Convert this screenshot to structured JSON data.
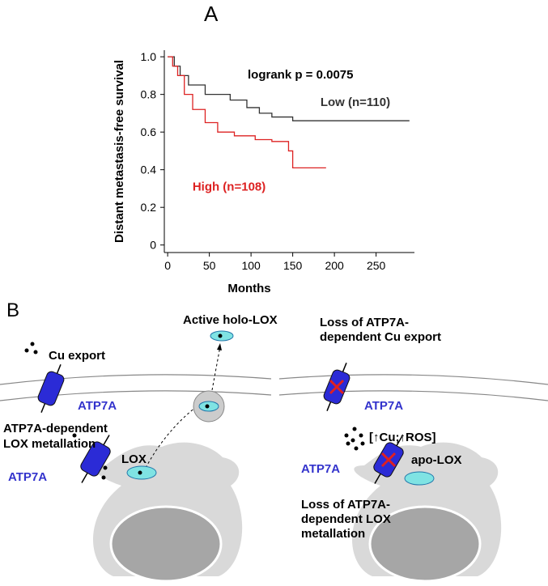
{
  "chart_data": {
    "type": "line",
    "panel": "A",
    "y_label": "Distant metastasis-free survival",
    "x_label": "Months",
    "annotation": "logrank p = 0.0075",
    "xlim": [
      -4,
      296
    ],
    "xticks": [
      0,
      50,
      100,
      150,
      200,
      250
    ],
    "ylim": [
      -0.04,
      1.035
    ],
    "yticks": [
      {
        "value": 1,
        "label": "1.0"
      },
      0.8,
      0.6,
      0.4,
      0.2,
      0
    ],
    "series": [
      {
        "name": "Low (n=110)",
        "color": "#333333",
        "x": [
          0,
          8,
          15,
          25,
          45,
          75,
          95,
          110,
          125,
          150,
          290
        ],
        "values": [
          1,
          0.95,
          0.9,
          0.85,
          0.8,
          0.77,
          0.73,
          0.7,
          0.68,
          0.66,
          0.66
        ]
      },
      {
        "name": "High (n=108)",
        "color": "#dd2222",
        "x": [
          0,
          6,
          12,
          20,
          30,
          45,
          60,
          80,
          105,
          125,
          145,
          150,
          190
        ],
        "values": [
          1,
          0.95,
          0.9,
          0.8,
          0.72,
          0.65,
          0.6,
          0.58,
          0.56,
          0.55,
          0.5,
          0.41,
          0.41
        ]
      }
    ]
  },
  "diagram": {
    "panel": "B",
    "left": {
      "cu_export": "Cu export",
      "atp7a_membrane": "ATP7A",
      "active_lox": "Active holo-LOX",
      "metallation": [
        "ATP7A-dependent",
        "LOX metallation"
      ],
      "atp7a_cell": "ATP7A",
      "lox": "LOX"
    },
    "right": {
      "loss_export": [
        "Loss of ATP7A-",
        "dependent Cu export"
      ],
      "atp7a_membrane": "ATP7A",
      "cu_ros": "[↑Cu;↑ROS]",
      "atp7a_cell": "ATP7A",
      "apo_lox": "apo-LOX",
      "loss_metallation": [
        "Loss of ATP7A-",
        "dependent LOX",
        "metallation"
      ]
    }
  }
}
